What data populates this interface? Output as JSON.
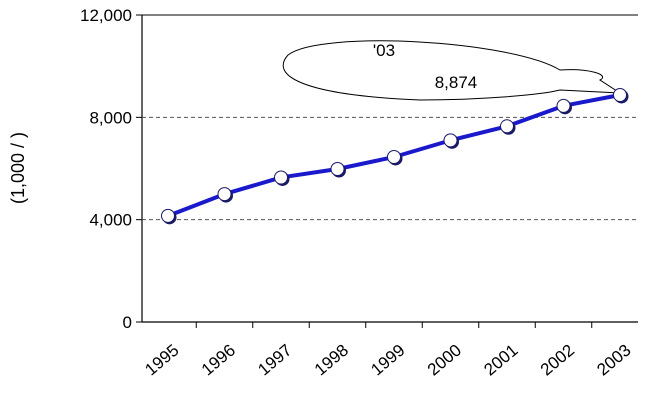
{
  "chart_data": {
    "type": "line",
    "categories": [
      "1995",
      "1996",
      "1997",
      "1998",
      "1999",
      "2000",
      "2001",
      "2002",
      "2003"
    ],
    "series": [
      {
        "values": [
          4150,
          5000,
          5650,
          5980,
          6450,
          7100,
          7650,
          8450,
          8874
        ]
      }
    ],
    "ylabel": "(1,000   /   )",
    "ylim": [
      0,
      12000
    ],
    "yticks": [
      "0",
      "4,000",
      "8,000",
      "12,000"
    ],
    "grid": "dashed horizontal at 4,000 and 8,000",
    "colors": {
      "line": "#1a1acc",
      "marker_fill": "#ffffff",
      "marker_stroke": "#1a1a66",
      "grid": "#555555"
    },
    "annotation": {
      "year": "'03",
      "value": "8,874"
    }
  }
}
